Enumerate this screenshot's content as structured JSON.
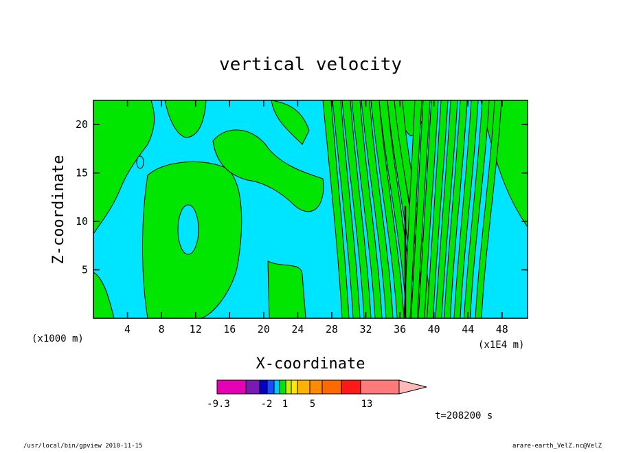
{
  "chart_data": {
    "type": "heatmap",
    "title": "vertical velocity",
    "xlabel": "X-coordinate",
    "ylabel": "Z-coordinate",
    "xunit_left": "(x1000 m)",
    "xunit_right": "(x1E4 m)",
    "x_tick_values": [
      4,
      8,
      12,
      16,
      20,
      24,
      28,
      32,
      36,
      40,
      44,
      48
    ],
    "y_tick_values": [
      5,
      10,
      15,
      20
    ],
    "xlim": [
      0,
      51
    ],
    "ylim": [
      0,
      22.5
    ],
    "time_label": "t=208200 s",
    "colors": {
      "negative": "#00e5ff",
      "positive": "#00e600",
      "contour": "#000000"
    },
    "colorbar": {
      "colors": [
        "#e600b3",
        "#7a1ab3",
        "#0000c8",
        "#1a4dff",
        "#00c8ff",
        "#00e600",
        "#c8f000",
        "#ffe600",
        "#ffb300",
        "#ff8c00",
        "#ff6a00",
        "#ff1a1a",
        "#ff7a7a",
        "#ffb8b8"
      ],
      "tick_labels": [
        "-9.3",
        "-2",
        "1",
        "5",
        "13"
      ]
    }
  },
  "footer": {
    "left": "/usr/local/bin/gpview  2010-11-15",
    "right": "arare-earth_VelZ.nc@VelZ"
  }
}
